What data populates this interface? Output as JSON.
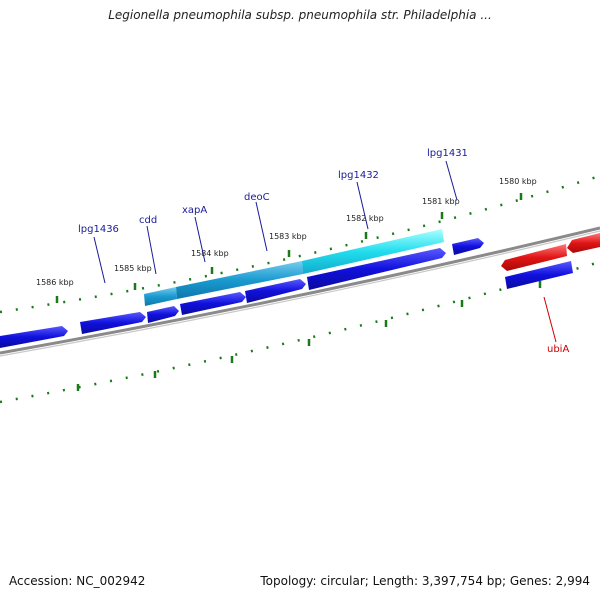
{
  "title": "Legionella pneumophila subsp. pneumophila str. Philadelphia ...",
  "footer": {
    "accession": "Accession: NC_002942",
    "topology": "Topology: circular; Length: 3,397,754 bp; Genes: 2,994"
  },
  "colors": {
    "backbone": "#7a7a7a",
    "ticks": "#1a7a1a",
    "gene_default": "#1010dd",
    "gene_label": "#1a1a9a",
    "highlight_cyan": "#22ddee",
    "highlight_blue": "#1a9ad0",
    "reverse_gene": "#e01515",
    "reverse_label": "#cc0000"
  },
  "scale_labels": [
    "1586 kbp",
    "1585 kbp",
    "1584 kbp",
    "1583 kbp",
    "1582 kbp",
    "1581 kbp",
    "1580 kbp"
  ],
  "gene_labels": [
    {
      "id": "lpg1436",
      "text": "lpg1436",
      "strand": "forward"
    },
    {
      "id": "cdd",
      "text": "cdd",
      "strand": "forward"
    },
    {
      "id": "xapA",
      "text": "xapA",
      "strand": "forward"
    },
    {
      "id": "deoC",
      "text": "deoC",
      "strand": "forward"
    },
    {
      "id": "lpg1432",
      "text": "lpg1432",
      "strand": "forward"
    },
    {
      "id": "lpg1431",
      "text": "lpg1431",
      "strand": "forward"
    },
    {
      "id": "ubiA",
      "text": "ubiA",
      "strand": "reverse"
    }
  ]
}
